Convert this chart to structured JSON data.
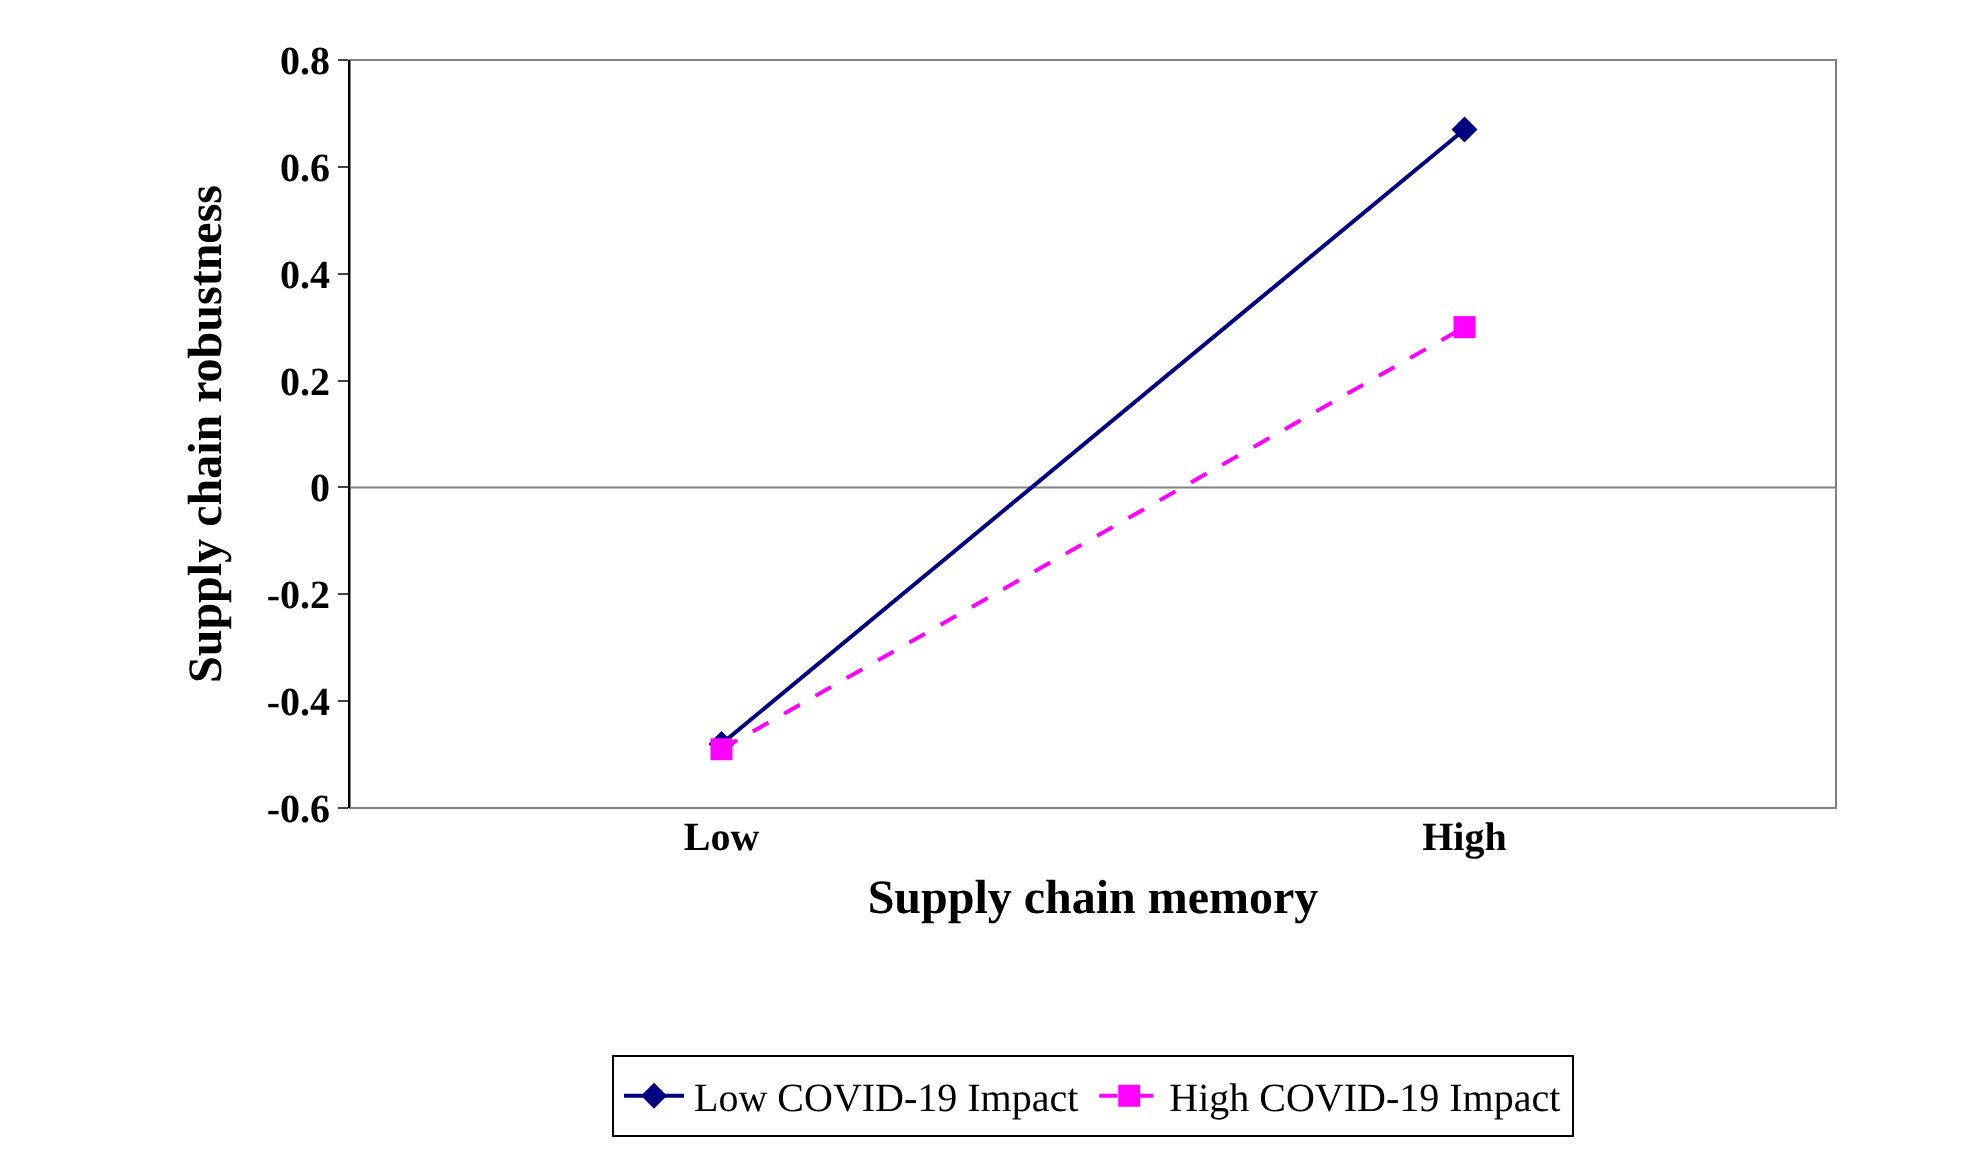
{
  "chart_data": {
    "type": "line",
    "xlabel": "Supply chain memory",
    "ylabel": "Supply chain robustness",
    "categories": [
      "Low",
      "High"
    ],
    "series": [
      {
        "name": "Low COVID-19 Impact",
        "color": "#000080",
        "values": [
          -0.48,
          0.67
        ],
        "marker": "diamond",
        "line_style": "solid"
      },
      {
        "name": "High COVID-19 Impact",
        "color": "#ff00ff",
        "values": [
          -0.49,
          0.3
        ],
        "marker": "square",
        "line_style": "dashed"
      }
    ],
    "ylim": [
      -0.6,
      0.8
    ],
    "yticks": [
      -0.6,
      -0.4,
      -0.2,
      0,
      0.2,
      0.4,
      0.6,
      0.8
    ],
    "ref_lines": [
      {
        "axis": "y",
        "value": 0,
        "color": "#808080"
      }
    ],
    "grid": false,
    "legend": "bottom"
  }
}
